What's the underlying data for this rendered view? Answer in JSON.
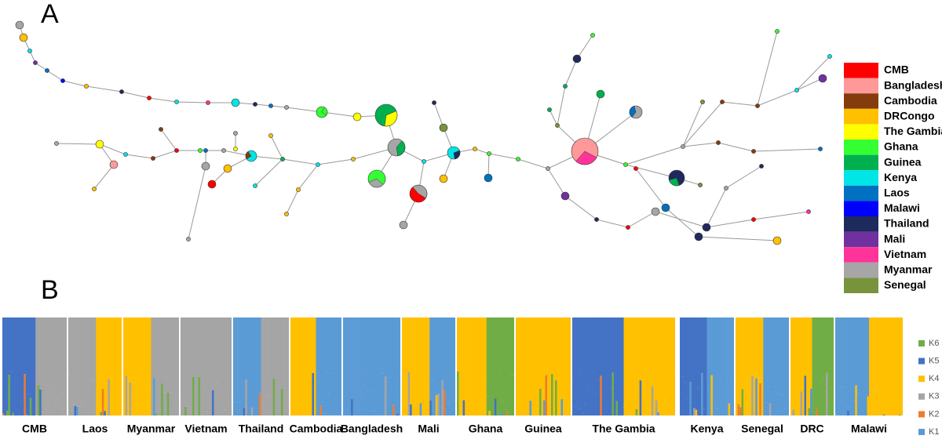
{
  "panel_a": {
    "label": "A",
    "legend": [
      {
        "name": "CMB",
        "color": "#ff0000"
      },
      {
        "name": "Bangladesh",
        "color": "#ff9999"
      },
      {
        "name": "Cambodia",
        "color": "#843c0c"
      },
      {
        "name": "DRCongo",
        "color": "#ffc000"
      },
      {
        "name": "The Gambia",
        "color": "#ffff00"
      },
      {
        "name": "Ghana",
        "color": "#33ff33"
      },
      {
        "name": "Guinea",
        "color": "#00b050"
      },
      {
        "name": "Kenya",
        "color": "#00e5e5"
      },
      {
        "name": "Laos",
        "color": "#0070c0"
      },
      {
        "name": "Malawi",
        "color": "#0000ff"
      },
      {
        "name": "Thailand",
        "color": "#1f2a5c"
      },
      {
        "name": "Mali",
        "color": "#7030a0"
      },
      {
        "name": "Vietnam",
        "color": "#ff3399"
      },
      {
        "name": "Myanmar",
        "color": "#a6a6a6"
      },
      {
        "name": "Senegal",
        "color": "#77933c"
      }
    ]
  },
  "panel_b": {
    "label": "B",
    "populations": [
      "CMB",
      "Laos",
      "Myanmar",
      "Vietnam",
      "Thailand",
      "Cambodia",
      "Bangladesh",
      "Mali",
      "Ghana",
      "Guinea",
      "The Gambia",
      "Kenya",
      "Senegal",
      "DRC",
      "Malawi"
    ],
    "clusters": [
      {
        "name": "K6",
        "color": "#70ad47"
      },
      {
        "name": "K5",
        "color": "#4472c4"
      },
      {
        "name": "K4",
        "color": "#ffc000"
      },
      {
        "name": "K3",
        "color": "#a5a5a5"
      },
      {
        "name": "K2",
        "color": "#ed7d31"
      },
      {
        "name": "K1",
        "color": "#5b9bd5"
      }
    ]
  }
}
